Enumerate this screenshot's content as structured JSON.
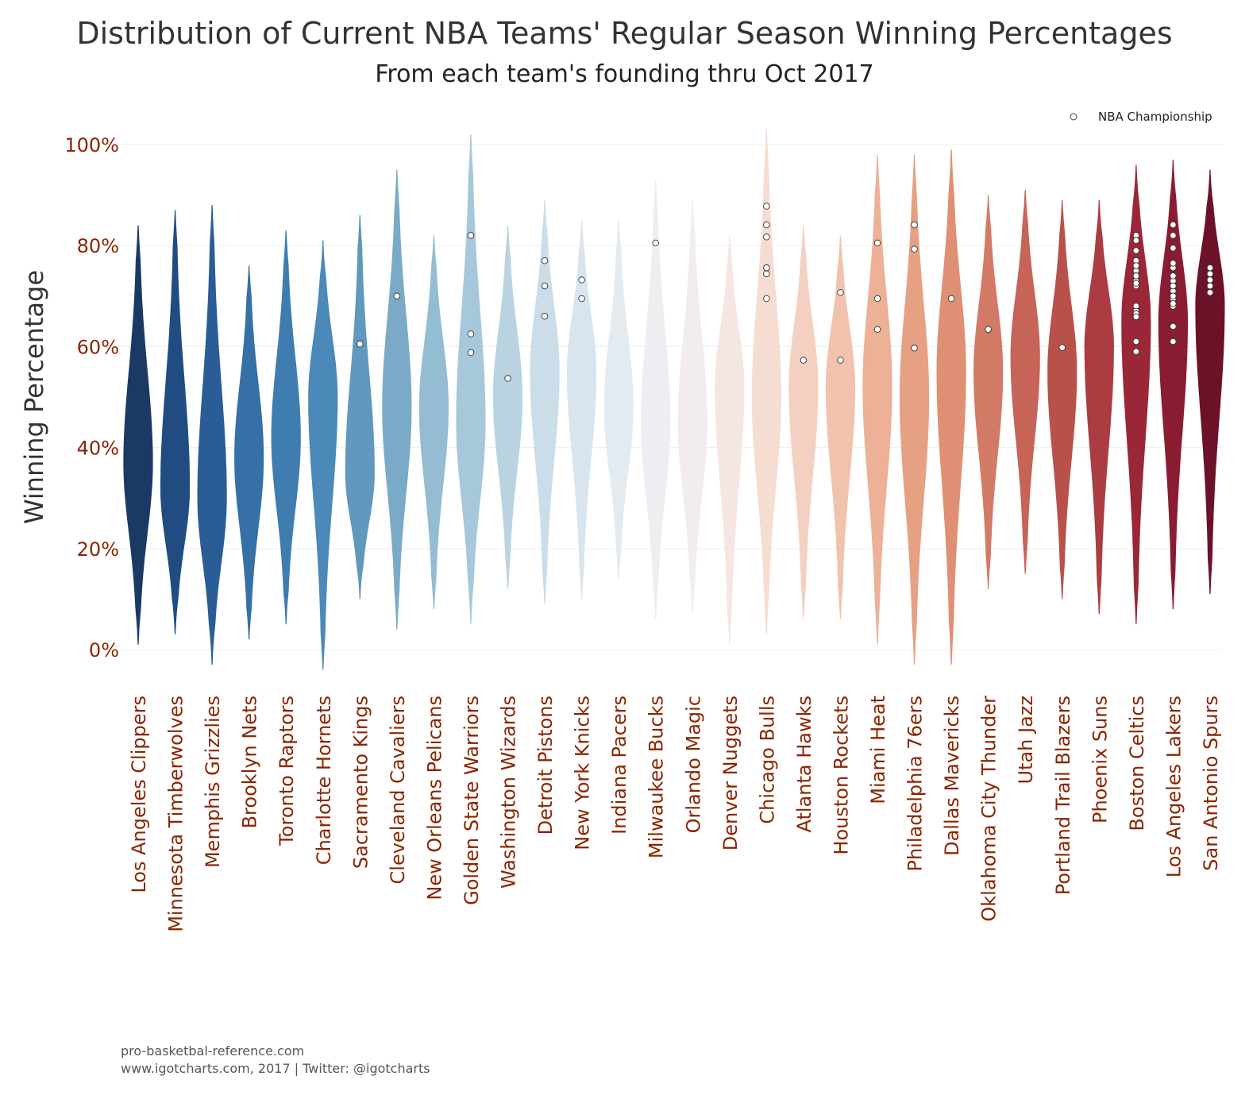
{
  "title": "Distribution of Current NBA Teams' Regular Season Winning Percentages",
  "subtitle": "From each team's founding thru Oct 2017",
  "source_lines": [
    "pro-basketbal-reference.com",
    "www.igotcharts.com, 2017 | Twitter: @igotcharts"
  ],
  "chart_data": {
    "type": "violin",
    "ylabel": "Winning Percentage",
    "ylim": [
      0,
      100
    ],
    "yticks": [
      0,
      20,
      40,
      60,
      80,
      100
    ],
    "ytick_labels": [
      "0%",
      "20%",
      "40%",
      "60%",
      "80%",
      "100%"
    ],
    "legend": {
      "label": "NBA Championship",
      "position": "top-right"
    },
    "grid": true,
    "teams": [
      {
        "name": "Los Angeles Clippers",
        "color": "#1a3a64",
        "range": [
          1,
          84
        ],
        "peak": 37,
        "championships": []
      },
      {
        "name": "Minnesota Timberwolves",
        "color": "#204c82",
        "range": [
          3,
          87
        ],
        "peak": 32,
        "championships": []
      },
      {
        "name": "Memphis Grizzlies",
        "color": "#2a5d96",
        "range": [
          -3,
          88
        ],
        "peak": 30,
        "championships": []
      },
      {
        "name": "Brooklyn Nets",
        "color": "#3570a6",
        "range": [
          2,
          76
        ],
        "peak": 38,
        "championships": []
      },
      {
        "name": "Toronto Raptors",
        "color": "#3f7db0",
        "range": [
          5,
          83
        ],
        "peak": 42,
        "championships": []
      },
      {
        "name": "Charlotte Hornets",
        "color": "#4a89b8",
        "range": [
          -4,
          81
        ],
        "peak": 50,
        "championships": []
      },
      {
        "name": "Sacramento Kings",
        "color": "#6198bd",
        "range": [
          10,
          86
        ],
        "peak": 35,
        "championships": [
          60.5
        ]
      },
      {
        "name": "Cleveland Cavaliers",
        "color": "#7aaac8",
        "range": [
          4,
          95
        ],
        "peak": 48,
        "championships": [
          70
        ]
      },
      {
        "name": "New Orleans Pelicans",
        "color": "#94bcd3",
        "range": [
          8,
          82
        ],
        "peak": 48,
        "championships": []
      },
      {
        "name": "Golden State Warriors",
        "color": "#a7c8da",
        "range": [
          5,
          102
        ],
        "peak": 45,
        "championships": [
          82,
          82,
          62.5,
          58.8
        ]
      },
      {
        "name": "Washington Wizards",
        "color": "#b9d3e1",
        "range": [
          12,
          84
        ],
        "peak": 50,
        "championships": [
          53.7
        ]
      },
      {
        "name": "Detroit Pistons",
        "color": "#cadde9",
        "range": [
          9,
          89
        ],
        "peak": 55,
        "championships": [
          77,
          72,
          66
        ]
      },
      {
        "name": "New York Knicks",
        "color": "#d8e5ee",
        "range": [
          10,
          85
        ],
        "peak": 55,
        "championships": [
          73.2,
          69.5
        ]
      },
      {
        "name": "Indiana Pacers",
        "color": "#e3ebf1",
        "range": [
          14,
          85
        ],
        "peak": 48,
        "championships": []
      },
      {
        "name": "Milwaukee Bucks",
        "color": "#eceef2",
        "range": [
          6,
          93
        ],
        "peak": 45,
        "championships": [
          80.5
        ]
      },
      {
        "name": "Orlando Magic",
        "color": "#f2ecee",
        "range": [
          7,
          89
        ],
        "peak": 45,
        "championships": []
      },
      {
        "name": "Denver Nuggets",
        "color": "#f6e6e2",
        "range": [
          1,
          82
        ],
        "peak": 52,
        "championships": []
      },
      {
        "name": "Chicago Bulls",
        "color": "#f6ddd2",
        "range": [
          3,
          103
        ],
        "peak": 50,
        "championships": [
          87.8,
          84.1,
          81.7,
          75.6,
          74.4,
          69.5
        ]
      },
      {
        "name": "Atlanta Hawks",
        "color": "#f4d0c0",
        "range": [
          6,
          84
        ],
        "peak": 52,
        "championships": [
          57.3
        ]
      },
      {
        "name": "Houston Rockets",
        "color": "#f1c2ac",
        "range": [
          6,
          82
        ],
        "peak": 52,
        "championships": [
          70.7,
          57.3
        ]
      },
      {
        "name": "Miami Heat",
        "color": "#ecb196",
        "range": [
          1,
          98
        ],
        "peak": 52,
        "championships": [
          80.5,
          69.5,
          63.4
        ]
      },
      {
        "name": "Philadelphia 76ers",
        "color": "#e6a083",
        "range": [
          -3,
          98
        ],
        "peak": 50,
        "championships": [
          84.1,
          79.3,
          59.7
        ]
      },
      {
        "name": "Dallas Mavericks",
        "color": "#df8f73",
        "range": [
          -3,
          99
        ],
        "peak": 55,
        "championships": [
          69.5
        ]
      },
      {
        "name": "Oklahoma City Thunder",
        "color": "#d27a65",
        "range": [
          12,
          90
        ],
        "peak": 55,
        "championships": [
          63.4
        ]
      },
      {
        "name": "Utah Jazz",
        "color": "#c66458",
        "range": [
          15,
          91
        ],
        "peak": 58,
        "championships": []
      },
      {
        "name": "Portland Trail Blazers",
        "color": "#b9514b",
        "range": [
          10,
          89
        ],
        "peak": 55,
        "championships": [
          59.8
        ]
      },
      {
        "name": "Phoenix Suns",
        "color": "#aa3c42",
        "range": [
          7,
          89
        ],
        "peak": 60,
        "championships": []
      },
      {
        "name": "Boston Celtics",
        "color": "#9a2737",
        "range": [
          5,
          96
        ],
        "peak": 65,
        "championships": [
          82,
          81,
          79,
          77,
          75,
          73,
          72,
          68,
          67,
          66,
          61,
          59,
          76,
          74,
          72.5,
          66.5,
          65.9
        ]
      },
      {
        "name": "Los Angeles Lakers",
        "color": "#8a1c31",
        "range": [
          8,
          97
        ],
        "peak": 65,
        "championships": [
          84.1,
          82,
          79.5,
          76,
          75.6,
          73,
          71,
          69.5,
          68,
          64,
          61,
          74,
          70,
          72,
          68.5,
          76.5
        ]
      },
      {
        "name": "San Antonio Spurs",
        "color": "#6b1228",
        "range": [
          11,
          95
        ],
        "peak": 68,
        "championships": [
          75.6,
          74.4,
          73.2,
          72,
          70.7
        ]
      }
    ]
  }
}
